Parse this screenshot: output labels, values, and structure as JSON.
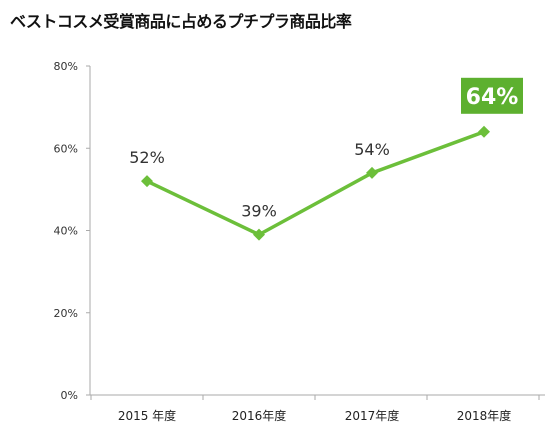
{
  "title": "ベストコスメ受賞商品に占めるプチプラ商品比率",
  "chart_data": {
    "type": "line",
    "title": "ベストコスメ受賞商品に占めるプチプラ商品比率",
    "categories": [
      "2015 年度",
      "2016年度",
      "2017年度",
      "2018年度"
    ],
    "values": [
      52,
      39,
      54,
      64
    ],
    "data_labels": [
      "52%",
      "39%",
      "54%",
      "64%"
    ],
    "highlight_index": 3,
    "yticks": [
      "0%",
      "20%",
      "40%",
      "60%",
      "80%"
    ],
    "ylim": [
      0,
      80
    ],
    "xlabel": "",
    "ylabel": "",
    "grid": false,
    "line_color": "#6cbf3a",
    "highlight_color": "#5db02f"
  }
}
